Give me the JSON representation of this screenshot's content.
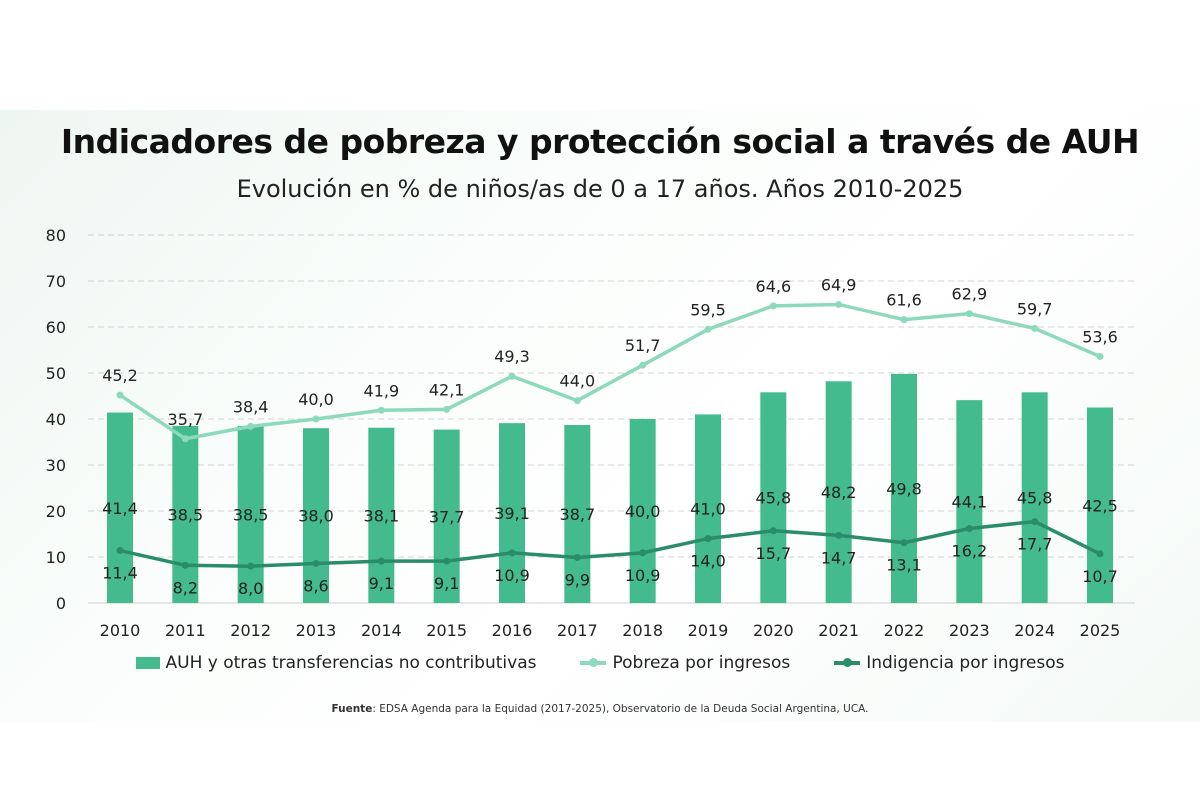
{
  "chart_data": {
    "type": "bar",
    "title": "Indicadores de pobreza y protección social a través de AUH",
    "subtitle": "Evolución en % de niños/as de 0 a 17 años. Años 2010-2025",
    "categories": [
      "2010",
      "2011",
      "2012",
      "2013",
      "2014",
      "2015",
      "2016",
      "2017",
      "2018",
      "2019",
      "2020",
      "2021",
      "2022",
      "2023",
      "2024",
      "2025"
    ],
    "ylim": [
      0,
      80
    ],
    "yticks": [
      "0",
      "10",
      "20",
      "30",
      "40",
      "50",
      "60",
      "70",
      "80"
    ],
    "grid": true,
    "legend_position": "bottom",
    "series": [
      {
        "name": "AUH y otras transferencias no contributivas",
        "kind": "bar",
        "color": "#43bb8f",
        "values": [
          41.4,
          38.5,
          38.5,
          38.0,
          38.1,
          37.7,
          39.1,
          38.7,
          40.0,
          41.0,
          45.8,
          48.2,
          49.8,
          44.1,
          45.8,
          42.5
        ],
        "labels": [
          "41,4",
          "38,5",
          "38,5",
          "38,0",
          "38,1",
          "37,7",
          "39,1",
          "38,7",
          "40,0",
          "41,0",
          "45,8",
          "48,2",
          "49,8",
          "44,1",
          "45,8",
          "42,5"
        ]
      },
      {
        "name": "Pobreza por ingresos",
        "kind": "line",
        "color": "#8dd9bb",
        "values": [
          45.2,
          35.7,
          38.4,
          40.0,
          41.9,
          42.1,
          49.3,
          44.0,
          51.7,
          59.5,
          64.6,
          64.9,
          61.6,
          62.9,
          59.7,
          53.6
        ],
        "labels": [
          "45,2",
          "35,7",
          "38,4",
          "40,0",
          "41,9",
          "42,1",
          "49,3",
          "44,0",
          "51,7",
          "59,5",
          "64,6",
          "64,9",
          "61,6",
          "62,9",
          "59,7",
          "53,6"
        ]
      },
      {
        "name": "Indigencia por ingresos",
        "kind": "line",
        "color": "#2a8c6a",
        "values": [
          11.4,
          8.2,
          8.0,
          8.6,
          9.1,
          9.1,
          10.9,
          9.9,
          10.9,
          14.0,
          15.7,
          14.7,
          13.1,
          16.2,
          17.7,
          10.7
        ],
        "labels": [
          "11,4",
          "8,2",
          "8,0",
          "8,6",
          "9,1",
          "9,1",
          "10,9",
          "9,9",
          "10,9",
          "14,0",
          "15,7",
          "14,7",
          "13,1",
          "16,2",
          "17,7",
          "10,7"
        ]
      }
    ]
  },
  "source": {
    "label": "Fuente",
    "text": ": EDSA Agenda para la Equidad (2017-2025), Observatorio de la Deuda Social Argentina, UCA."
  }
}
